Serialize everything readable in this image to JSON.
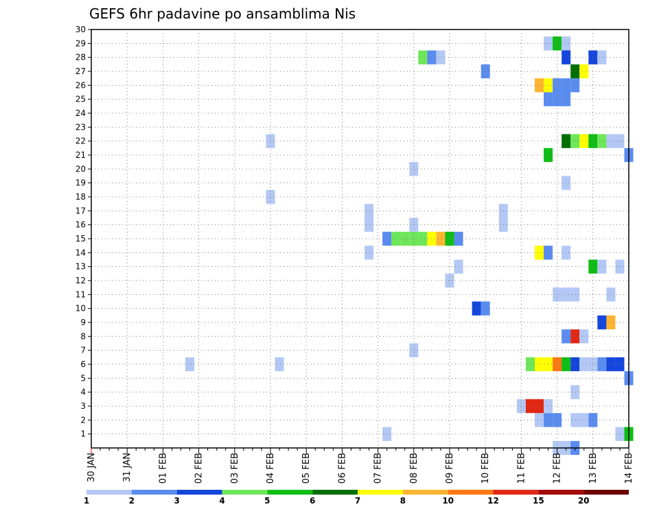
{
  "chart_data": {
    "type": "heatmap",
    "title": "GEFS 6hr padavine po ansamblima Nis",
    "xlabel": "",
    "ylabel": "",
    "y_ticks": [
      "1",
      "2",
      "3",
      "4",
      "5",
      "6",
      "7",
      "8",
      "9",
      "10",
      "11",
      "12",
      "13",
      "14",
      "15",
      "16",
      "17",
      "18",
      "19",
      "20",
      "21",
      "22",
      "23",
      "24",
      "25",
      "26",
      "27",
      "28",
      "29",
      "30"
    ],
    "x_ticks": [
      "30 JAN",
      "31 JAN",
      "01 FEB",
      "02 FEB",
      "03 FEB",
      "04 FEB",
      "05 FEB",
      "06 FEB",
      "07 FEB",
      "08 FEB",
      "09 FEB",
      "10 FEB",
      "11 FEB",
      "12 FEB",
      "13 FEB",
      "14 FEB"
    ],
    "x_step_hours": 6,
    "y_range": [
      0,
      30
    ],
    "grid": true,
    "legend": {
      "position": "bottom",
      "labels": [
        "1",
        "2",
        "3",
        "4",
        "5",
        "6",
        "7",
        "8",
        "10",
        "12",
        "15",
        "20"
      ],
      "colors": [
        "#b4c8f5",
        "#5a8cf0",
        "#1446dc",
        "#6ee65a",
        "#0fbe14",
        "#006e00",
        "#ffff00",
        "#ffb432",
        "#ff7814",
        "#e12814",
        "#a50a0a",
        "#6e0000"
      ]
    },
    "cells": [
      {
        "member": 1,
        "step": 33,
        "class": 0
      },
      {
        "member": 1,
        "step": 59,
        "class": 0
      },
      {
        "member": 1,
        "step": 60,
        "class": 4
      },
      {
        "member": 2,
        "step": 50,
        "class": 0
      },
      {
        "member": 2,
        "step": 51,
        "class": 1
      },
      {
        "member": 2,
        "step": 52,
        "class": 1
      },
      {
        "member": 2,
        "step": 54,
        "class": 0
      },
      {
        "member": 2,
        "step": 55,
        "class": 0
      },
      {
        "member": 2,
        "step": 56,
        "class": 1
      },
      {
        "member": 3,
        "step": 48,
        "class": 0
      },
      {
        "member": 3,
        "step": 49,
        "class": 9
      },
      {
        "member": 3,
        "step": 50,
        "class": 9
      },
      {
        "member": 3,
        "step": 51,
        "class": 0
      },
      {
        "member": 4,
        "step": 54,
        "class": 0
      },
      {
        "member": 5,
        "step": 60,
        "class": 1
      },
      {
        "member": 6,
        "step": 11,
        "class": 0
      },
      {
        "member": 6,
        "step": 21,
        "class": 0
      },
      {
        "member": 6,
        "step": 49,
        "class": 3
      },
      {
        "member": 6,
        "step": 50,
        "class": 6
      },
      {
        "member": 6,
        "step": 51,
        "class": 6
      },
      {
        "member": 6,
        "step": 52,
        "class": 8
      },
      {
        "member": 6,
        "step": 53,
        "class": 4
      },
      {
        "member": 6,
        "step": 54,
        "class": 2
      },
      {
        "member": 6,
        "step": 55,
        "class": 0
      },
      {
        "member": 6,
        "step": 56,
        "class": 0
      },
      {
        "member": 6,
        "step": 57,
        "class": 1
      },
      {
        "member": 6,
        "step": 58,
        "class": 2
      },
      {
        "member": 6,
        "step": 59,
        "class": 2
      },
      {
        "member": 7,
        "step": 36,
        "class": 0
      },
      {
        "member": 8,
        "step": 53,
        "class": 1
      },
      {
        "member": 8,
        "step": 54,
        "class": 9
      },
      {
        "member": 8,
        "step": 55,
        "class": 0
      },
      {
        "member": 9,
        "step": 57,
        "class": 2
      },
      {
        "member": 9,
        "step": 58,
        "class": 7
      },
      {
        "member": 10,
        "step": 43,
        "class": 2
      },
      {
        "member": 10,
        "step": 44,
        "class": 1
      },
      {
        "member": 11,
        "step": 52,
        "class": 0
      },
      {
        "member": 11,
        "step": 53,
        "class": 0
      },
      {
        "member": 11,
        "step": 54,
        "class": 0
      },
      {
        "member": 11,
        "step": 58,
        "class": 0
      },
      {
        "member": 12,
        "step": 40,
        "class": 0
      },
      {
        "member": 13,
        "step": 41,
        "class": 0
      },
      {
        "member": 13,
        "step": 56,
        "class": 4
      },
      {
        "member": 13,
        "step": 57,
        "class": 0
      },
      {
        "member": 13,
        "step": 59,
        "class": 0
      },
      {
        "member": 14,
        "step": 31,
        "class": 0
      },
      {
        "member": 14,
        "step": 50,
        "class": 6
      },
      {
        "member": 14,
        "step": 51,
        "class": 1
      },
      {
        "member": 14,
        "step": 53,
        "class": 0
      },
      {
        "member": 15,
        "step": 33,
        "class": 1
      },
      {
        "member": 15,
        "step": 34,
        "class": 3
      },
      {
        "member": 15,
        "step": 35,
        "class": 3
      },
      {
        "member": 15,
        "step": 36,
        "class": 3
      },
      {
        "member": 15,
        "step": 37,
        "class": 3
      },
      {
        "member": 15,
        "step": 38,
        "class": 6
      },
      {
        "member": 15,
        "step": 39,
        "class": 7
      },
      {
        "member": 15,
        "step": 40,
        "class": 4
      },
      {
        "member": 15,
        "step": 41,
        "class": 1
      },
      {
        "member": 16,
        "step": 31,
        "class": 0
      },
      {
        "member": 16,
        "step": 36,
        "class": 0
      },
      {
        "member": 16,
        "step": 46,
        "class": 0
      },
      {
        "member": 17,
        "step": 31,
        "class": 0
      },
      {
        "member": 17,
        "step": 46,
        "class": 0
      },
      {
        "member": 18,
        "step": 20,
        "class": 0
      },
      {
        "member": 19,
        "step": 53,
        "class": 0
      },
      {
        "member": 20,
        "step": 36,
        "class": 0
      },
      {
        "member": 21,
        "step": 51,
        "class": 4
      },
      {
        "member": 21,
        "step": 60,
        "class": 1
      },
      {
        "member": 22,
        "step": 20,
        "class": 0
      },
      {
        "member": 22,
        "step": 53,
        "class": 5
      },
      {
        "member": 22,
        "step": 54,
        "class": 3
      },
      {
        "member": 22,
        "step": 55,
        "class": 6
      },
      {
        "member": 22,
        "step": 56,
        "class": 4
      },
      {
        "member": 22,
        "step": 57,
        "class": 3
      },
      {
        "member": 22,
        "step": 58,
        "class": 0
      },
      {
        "member": 22,
        "step": 59,
        "class": 0
      },
      {
        "member": 25,
        "step": 51,
        "class": 1
      },
      {
        "member": 25,
        "step": 52,
        "class": 1
      },
      {
        "member": 25,
        "step": 53,
        "class": 1
      },
      {
        "member": 26,
        "step": 50,
        "class": 7
      },
      {
        "member": 26,
        "step": 51,
        "class": 6
      },
      {
        "member": 26,
        "step": 52,
        "class": 1
      },
      {
        "member": 26,
        "step": 53,
        "class": 1
      },
      {
        "member": 26,
        "step": 54,
        "class": 1
      },
      {
        "member": 27,
        "step": 44,
        "class": 1
      },
      {
        "member": 27,
        "step": 54,
        "class": 5
      },
      {
        "member": 27,
        "step": 55,
        "class": 6
      },
      {
        "member": 28,
        "step": 37,
        "class": 3
      },
      {
        "member": 28,
        "step": 38,
        "class": 1
      },
      {
        "member": 28,
        "step": 39,
        "class": 0
      },
      {
        "member": 28,
        "step": 53,
        "class": 2
      },
      {
        "member": 28,
        "step": 56,
        "class": 2
      },
      {
        "member": 28,
        "step": 57,
        "class": 0
      },
      {
        "member": 29,
        "step": 51,
        "class": 0
      },
      {
        "member": 29,
        "step": 52,
        "class": 4
      },
      {
        "member": 29,
        "step": 53,
        "class": 0
      },
      {
        "member": 0,
        "step": 52,
        "class": 0
      },
      {
        "member": 0,
        "step": 53,
        "class": 0
      },
      {
        "member": 0,
        "step": 54,
        "class": 1
      }
    ]
  }
}
